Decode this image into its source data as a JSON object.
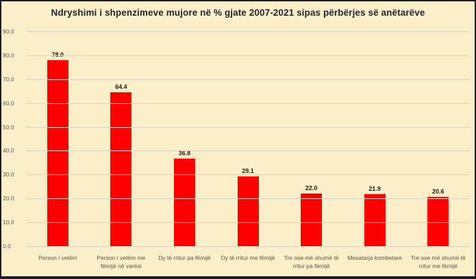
{
  "chart_data": {
    "type": "bar",
    "title": "Ndryshimi i shpenzimeve mujore në % gjate 2007-2021  sipas përbërjes së anëtarëve",
    "categories": [
      "Person i vetëm",
      "Person i vetëm me fëmijë në varësi",
      "Dy të rritur pa fëmijë",
      "Dy të rritur me fëmijë",
      "Tre ose më shumë të rritur pa fëmijë",
      "Mesatarja kombetare",
      "Tre ose më shumë të rritur me fëmijë"
    ],
    "values": [
      78.0,
      64.4,
      36.8,
      29.1,
      22.0,
      21.9,
      20.6
    ],
    "xlabel": "",
    "ylabel": "",
    "ylim": [
      0,
      90
    ],
    "yticks": [
      90,
      80,
      70,
      60,
      50,
      40,
      30,
      20,
      10,
      0
    ],
    "ytick_labels": [
      "90.0",
      "80.0",
      "70.0",
      "60.0",
      "50.0",
      "40.0",
      "30.0",
      "20.0",
      "10.0",
      "0.0"
    ],
    "grid": "horizontal",
    "legend": "none",
    "data_labels": [
      "78.0",
      "64.4",
      "36.8",
      "29.1",
      "22.0",
      "21.9",
      "20.6"
    ],
    "colors": {
      "bar": "#FE0000",
      "background": "#FBEFC9",
      "border": "#1C1C24",
      "gridline": "#D9D4C5",
      "title_text": "#1F2430",
      "tick_text": "#595959",
      "category_text": "#5B544A",
      "value_label_text": "#1A1A1A"
    }
  }
}
